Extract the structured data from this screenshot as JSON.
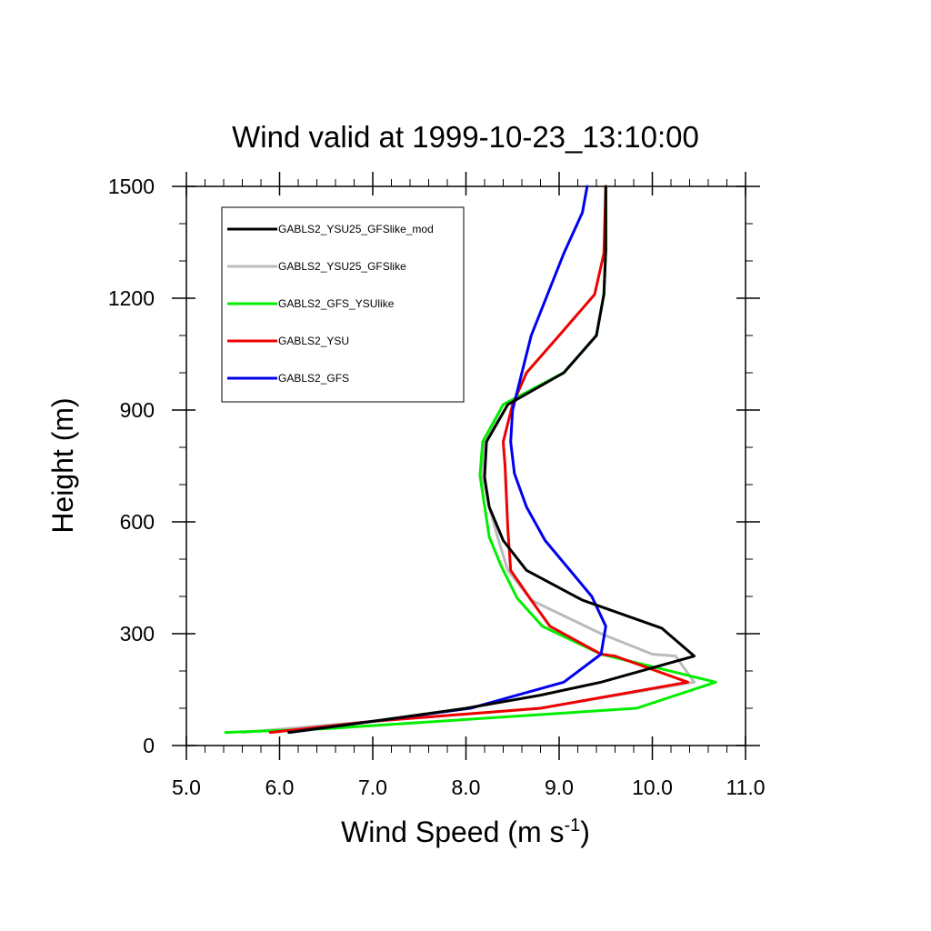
{
  "chart_data": {
    "type": "line",
    "title": "Wind valid at 1999-10-23_13:10:00",
    "xlabel": "Wind Speed (m s",
    "xlabel_superscript": "-1",
    "xlabel_suffix": ")",
    "ylabel": "Height (m)",
    "xlim": [
      5.0,
      11.0
    ],
    "ylim": [
      0,
      1500
    ],
    "x_major_ticks": [
      5.0,
      6.0,
      7.0,
      8.0,
      9.0,
      10.0,
      11.0
    ],
    "x_tick_labels": [
      "5.0",
      "6.0",
      "7.0",
      "8.0",
      "9.0",
      "10.0",
      "11.0"
    ],
    "x_minor_step": 0.2,
    "y_major_ticks": [
      0,
      300,
      600,
      900,
      1200,
      1500
    ],
    "y_tick_labels": [
      "0",
      "300",
      "600",
      "900",
      "1200",
      "1500"
    ],
    "y_minor_step": 100,
    "legend_position": "top-left",
    "grid": false,
    "series": [
      {
        "name": "GABLS2_YSU25_GFSlike_mod",
        "color": "#000000",
        "x": [
          6.1,
          7.0,
          8.0,
          8.8,
          9.45,
          10.45,
          10.1,
          9.25,
          8.65,
          8.4,
          8.25,
          8.2,
          8.22,
          8.45,
          9.05,
          9.4,
          9.48,
          9.5,
          9.5
        ],
        "y": [
          35,
          65,
          100,
          135,
          170,
          240,
          315,
          390,
          470,
          550,
          640,
          720,
          815,
          915,
          1000,
          1100,
          1210,
          1330,
          1500
        ]
      },
      {
        "name": "GABLS2_YSU25_GFSlike",
        "color": "#bbbbbb",
        "x": [
          5.6,
          7.0,
          8.8,
          10.45,
          10.25,
          10.0,
          9.45,
          8.7,
          8.45,
          8.35,
          8.25,
          8.18,
          8.2,
          8.4,
          9.05,
          9.4,
          9.48,
          9.5,
          9.5
        ],
        "y": [
          35,
          65,
          100,
          170,
          240,
          245,
          300,
          390,
          470,
          550,
          640,
          720,
          815,
          915,
          1000,
          1100,
          1210,
          1330,
          1500
        ]
      },
      {
        "name": "GABLS2_GFS_YSUlike",
        "color": "#00ee00",
        "x": [
          5.42,
          6.5,
          9.83,
          10.68,
          9.45,
          8.82,
          8.55,
          8.38,
          8.25,
          8.15,
          8.18,
          8.4,
          9.05,
          9.4,
          9.48,
          9.5,
          9.5
        ],
        "y": [
          35,
          45,
          100,
          170,
          245,
          320,
          395,
          480,
          560,
          725,
          815,
          915,
          1000,
          1100,
          1210,
          1330,
          1500
        ]
      },
      {
        "name": "GABLS2_YSU",
        "color": "#ee0000",
        "x": [
          5.9,
          7.0,
          8.8,
          10.38,
          9.6,
          9.45,
          8.9,
          8.7,
          8.48,
          8.45,
          8.42,
          8.4,
          8.5,
          8.65,
          9.0,
          9.38,
          9.48,
          9.5
        ],
        "y": [
          35,
          65,
          100,
          170,
          240,
          245,
          320,
          390,
          470,
          580,
          750,
          815,
          915,
          1000,
          1100,
          1210,
          1320,
          1500
        ]
      },
      {
        "name": "GABLS2_GFS",
        "color": "#0000ee",
        "x": [
          6.1,
          7.0,
          8.05,
          8.55,
          9.05,
          9.45,
          9.5,
          9.35,
          8.85,
          8.65,
          8.52,
          8.48,
          8.5,
          8.6,
          8.7,
          9.05,
          9.25,
          9.3
        ],
        "y": [
          35,
          65,
          100,
          135,
          170,
          245,
          320,
          400,
          550,
          640,
          730,
          815,
          900,
          1000,
          1100,
          1320,
          1430,
          1500
        ]
      }
    ]
  }
}
